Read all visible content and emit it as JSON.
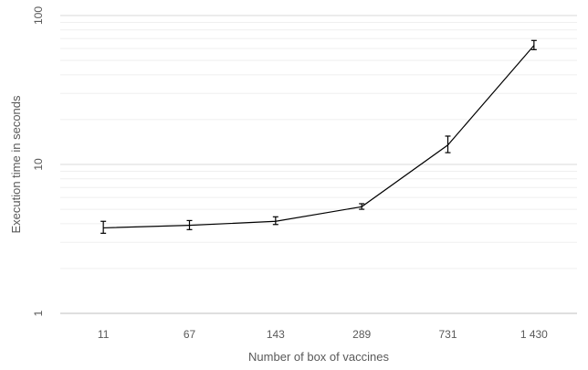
{
  "chart_data": {
    "type": "line",
    "title": "",
    "xlabel": "Number of box of vaccines",
    "ylabel": "Execution time in seconds",
    "y_scale": "log",
    "ylim": [
      1,
      100
    ],
    "y_ticks": [
      1,
      10,
      100
    ],
    "grid": "horizontal major and minor",
    "legend": "none",
    "categories": [
      "11",
      "67",
      "143",
      "289",
      "731",
      "1 430"
    ],
    "series": [
      {
        "values": [
          3.75,
          3.9,
          4.15,
          5.2,
          13.5,
          63
        ],
        "error_low": [
          3.45,
          3.65,
          3.95,
          5.0,
          12.0,
          59
        ],
        "error_high": [
          4.15,
          4.2,
          4.45,
          5.45,
          15.5,
          68
        ],
        "color": "#000000"
      }
    ]
  }
}
